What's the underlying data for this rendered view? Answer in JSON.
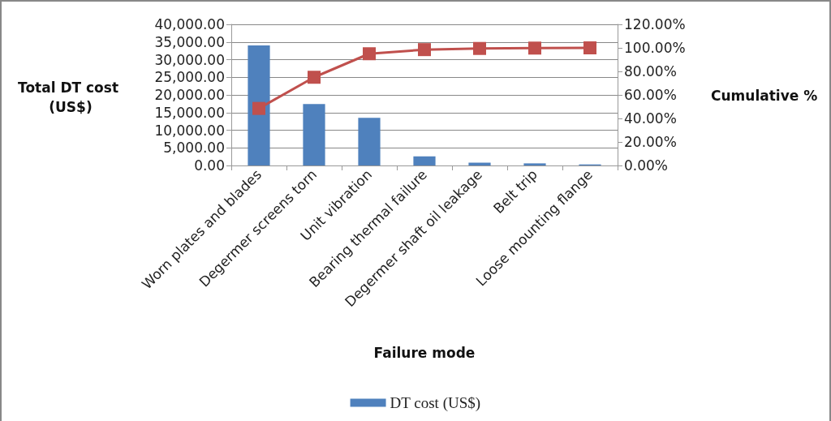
{
  "chart_data": {
    "type": "bar",
    "xlabel": "Failure mode",
    "ylabel": "Total DT cost (US$)",
    "y2label": "Cumulative %",
    "categories": [
      "Worn plates and blades",
      "Degermer screens torn",
      "Unit vibration",
      "Bearing thermal failure",
      "Degermer shaft oil leakage",
      "Belt trip",
      "Loose mounting flange"
    ],
    "series": [
      {
        "name": "DT cost (US$)",
        "color": "#4f81bd",
        "values": [
          34000,
          17400,
          13500,
          2600,
          800,
          600,
          300
        ]
      },
      {
        "type": "line",
        "axis": "y2",
        "color": "#c0504d",
        "marker": "square",
        "values": [
          48.5,
          75,
          95,
          98.5,
          99.5,
          99.8,
          100
        ]
      }
    ],
    "ylim": [
      0,
      40000
    ],
    "yticks": [
      {
        "value": 0,
        "label": "0.00"
      },
      {
        "value": 5000,
        "label": "5,000.00"
      },
      {
        "value": 10000,
        "label": "10,000.00"
      },
      {
        "value": 15000,
        "label": "15,000.00"
      },
      {
        "value": 20000,
        "label": "20,000.00"
      },
      {
        "value": 25000,
        "label": "25,000.00"
      },
      {
        "value": 30000,
        "label": "30,000.00"
      },
      {
        "value": 35000,
        "label": "35,000.00"
      },
      {
        "value": 40000,
        "label": "40,000.00"
      }
    ],
    "y2lim": [
      0,
      120
    ],
    "y2ticks": [
      {
        "value": 0,
        "label": "0.00%"
      },
      {
        "value": 20,
        "label": "20.00%"
      },
      {
        "value": 40,
        "label": "40.00%"
      },
      {
        "value": 60,
        "label": "60.00%"
      },
      {
        "value": 80,
        "label": "80.00%"
      },
      {
        "value": 100,
        "label": "100.00%"
      },
      {
        "value": 120,
        "label": "120.00%"
      }
    ],
    "grid": "y",
    "legend": "bottom"
  }
}
